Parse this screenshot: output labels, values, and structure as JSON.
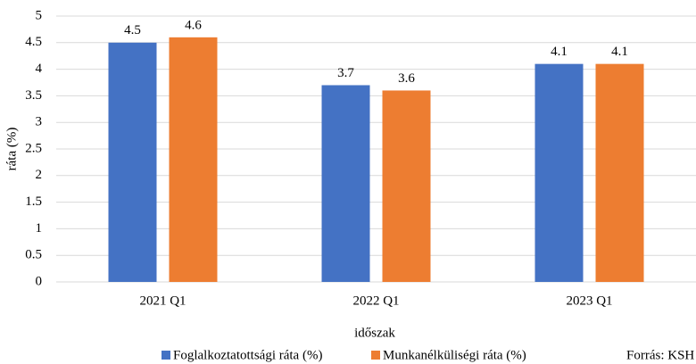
{
  "chart_data": {
    "type": "bar",
    "ylabel": "ráta (%)",
    "xlabel": "időszak",
    "note": "Forrás: KSH",
    "categories": [
      "2021 Q1",
      "2022 Q1",
      "2023 Q1"
    ],
    "series": [
      {
        "name": "Foglalkoztatottsági ráta (%)",
        "color": "#4472c4",
        "values": [
          4.5,
          3.7,
          4.1
        ]
      },
      {
        "name": "Munkanélküliségi ráta (%)",
        "color": "#ed7d31",
        "values": [
          4.6,
          3.6,
          4.1
        ]
      }
    ],
    "ylim": [
      0,
      5
    ],
    "yticks": [
      0,
      0.5,
      1,
      1.5,
      2,
      2.5,
      3,
      3.5,
      4,
      4.5,
      5
    ],
    "grid": true
  }
}
